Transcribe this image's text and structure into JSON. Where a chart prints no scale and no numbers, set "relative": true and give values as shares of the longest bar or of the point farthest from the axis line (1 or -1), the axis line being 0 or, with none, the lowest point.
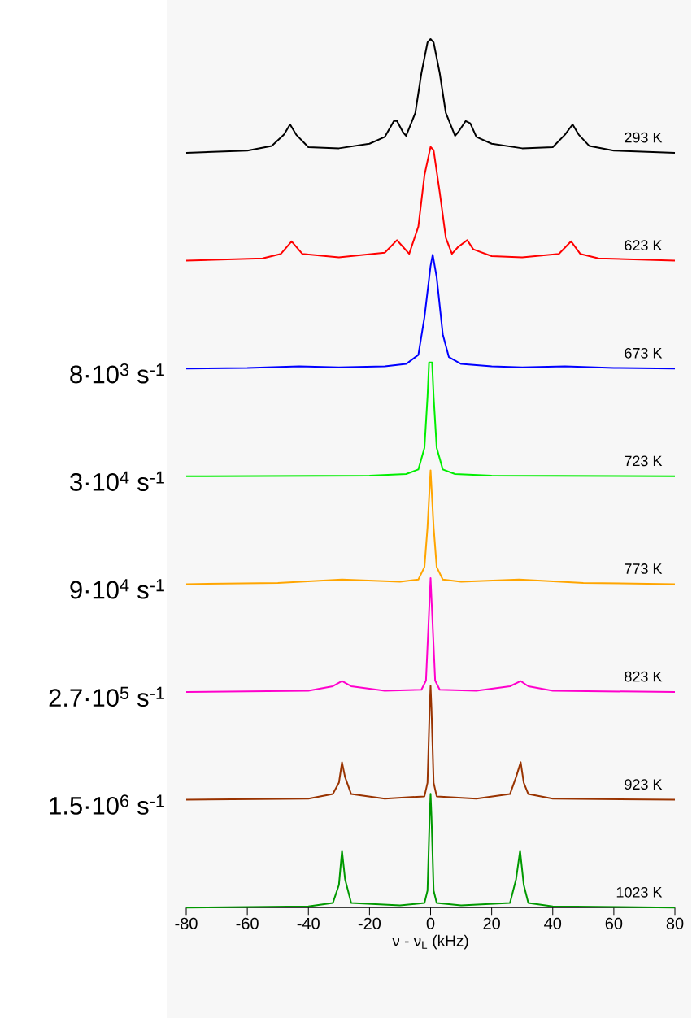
{
  "chart_data": [
    {
      "type": "line",
      "relative": true,
      "tick_labels": false,
      "xlim": [
        -80,
        80
      ],
      "series": [
        {
          "name": "293 K",
          "color": "#000000",
          "x": [
            -80,
            -60,
            -52,
            -48,
            -46,
            -44,
            -40,
            -30,
            -20,
            -15,
            -12,
            -11,
            -9,
            -8,
            -5,
            -3,
            -1,
            0,
            1,
            3,
            5,
            8,
            9,
            11.5,
            13,
            15,
            20,
            30,
            40,
            44,
            46.5,
            48.5,
            52,
            60,
            80
          ],
          "values": [
            0,
            0.02,
            0.06,
            0.16,
            0.25,
            0.16,
            0.05,
            0.04,
            0.08,
            0.14,
            0.28,
            0.28,
            0.18,
            0.15,
            0.35,
            0.7,
            0.97,
            1,
            0.97,
            0.7,
            0.35,
            0.15,
            0.18,
            0.28,
            0.26,
            0.14,
            0.08,
            0.04,
            0.05,
            0.16,
            0.25,
            0.16,
            0.06,
            0.02,
            0
          ]
        }
      ]
    },
    {
      "type": "line",
      "relative": true,
      "tick_labels": false,
      "xlim": [
        -80,
        80
      ],
      "series": [
        {
          "name": "623 K",
          "color": "#ff0000",
          "x": [
            -80,
            -55,
            -49,
            -45.5,
            -42,
            -30,
            -15,
            -11,
            -9,
            -7,
            -4,
            -2,
            0,
            1,
            3,
            5,
            7,
            9,
            12,
            14,
            20,
            30,
            42,
            46,
            49,
            55,
            80
          ],
          "values": [
            0,
            0.02,
            0.06,
            0.17,
            0.06,
            0.03,
            0.07,
            0.18,
            0.12,
            0.06,
            0.3,
            0.75,
            1,
            0.97,
            0.6,
            0.2,
            0.06,
            0.12,
            0.18,
            0.1,
            0.04,
            0.03,
            0.06,
            0.17,
            0.06,
            0.02,
            0
          ]
        }
      ]
    },
    {
      "type": "line",
      "relative": true,
      "tick_labels": false,
      "xlim": [
        -80,
        80
      ],
      "annotations": [
        "8·10$^{3}$ s$^{-1}$"
      ],
      "series": [
        {
          "name": "673 K",
          "color": "#0000ff",
          "x": [
            -80,
            -60,
            -43,
            -30,
            -15,
            -8,
            -4,
            -2,
            0,
            0.7,
            2,
            4,
            6,
            10,
            20,
            30,
            44,
            60,
            80
          ],
          "values": [
            0,
            0.005,
            0.02,
            0.01,
            0.02,
            0.04,
            0.12,
            0.45,
            0.9,
            1,
            0.8,
            0.3,
            0.1,
            0.04,
            0.02,
            0.01,
            0.02,
            0.005,
            0
          ]
        }
      ]
    },
    {
      "type": "line",
      "relative": true,
      "tick_labels": false,
      "xlim": [
        -80,
        80
      ],
      "annotations": [
        "3·10$^{4}$ s$^{-1}$"
      ],
      "series": [
        {
          "name": "723 K",
          "color": "#00ee00",
          "x": [
            -80,
            -20,
            -8,
            -4,
            -2,
            -1,
            -0.5,
            0.5,
            1,
            2,
            4,
            8,
            20,
            80
          ],
          "values": [
            0,
            0.005,
            0.02,
            0.06,
            0.25,
            0.7,
            1,
            1,
            0.7,
            0.25,
            0.06,
            0.02,
            0.005,
            0
          ]
        }
      ]
    },
    {
      "type": "line",
      "relative": true,
      "tick_labels": false,
      "xlim": [
        -80,
        80
      ],
      "annotations": [
        "9·10$^{4}$ s$^{-1}$"
      ],
      "series": [
        {
          "name": "773 K",
          "color": "#ffa500",
          "x": [
            -80,
            -50,
            -29,
            -10,
            -4,
            -2,
            -1,
            0,
            1,
            2,
            4,
            10,
            29,
            50,
            80
          ],
          "values": [
            0,
            0.01,
            0.04,
            0.02,
            0.04,
            0.15,
            0.5,
            1,
            0.5,
            0.15,
            0.04,
            0.02,
            0.04,
            0.01,
            0
          ]
        }
      ]
    },
    {
      "type": "line",
      "relative": true,
      "tick_labels": false,
      "xlim": [
        -80,
        80
      ],
      "annotations": [
        "2.7·10$^{5}$ s$^{-1}$"
      ],
      "series": [
        {
          "name": "823 K",
          "color": "#ff00cc",
          "x": [
            -80,
            -40,
            -32,
            -29,
            -26,
            -15,
            -3,
            -1.5,
            -0.5,
            0,
            0.5,
            1.5,
            3,
            15,
            26,
            29.5,
            32,
            40,
            80
          ],
          "values": [
            0,
            0.01,
            0.05,
            0.095,
            0.05,
            0.01,
            0.02,
            0.1,
            0.7,
            1,
            0.7,
            0.1,
            0.02,
            0.01,
            0.05,
            0.095,
            0.05,
            0.01,
            0
          ]
        }
      ]
    },
    {
      "type": "line",
      "relative": true,
      "tick_labels": false,
      "xlim": [
        -80,
        80
      ],
      "annotations": [
        "1.5·10$^{6}$ s$^{-1}$"
      ],
      "series": [
        {
          "name": "923 K",
          "color": "#993300",
          "x": [
            -80,
            -40,
            -32,
            -30,
            -29,
            -28,
            -26,
            -15,
            -2,
            -1,
            -0.3,
            0,
            0.3,
            1,
            2,
            15,
            26,
            28,
            29.5,
            30.5,
            32,
            40,
            80
          ],
          "values": [
            0,
            0.01,
            0.05,
            0.15,
            0.33,
            0.2,
            0.05,
            0.01,
            0.03,
            0.15,
            0.8,
            1,
            0.8,
            0.15,
            0.03,
            0.01,
            0.05,
            0.2,
            0.33,
            0.15,
            0.05,
            0.01,
            0
          ]
        }
      ]
    },
    {
      "type": "line",
      "relative": true,
      "xlim": [
        -80,
        80
      ],
      "xticks": [
        -80,
        -60,
        -40,
        -20,
        0,
        20,
        40,
        60,
        80
      ],
      "xlabel": "ν - ν$_{L}$  (kHz)",
      "series": [
        {
          "name": "1023 K",
          "color": "#009900",
          "x": [
            -80,
            -40,
            -32,
            -30,
            -29,
            -28,
            -26,
            -10,
            -2,
            -1,
            -0.3,
            0,
            0.3,
            1,
            2,
            10,
            26,
            28,
            29.3,
            30.5,
            32,
            40,
            80
          ],
          "values": [
            0,
            0.01,
            0.04,
            0.2,
            0.5,
            0.25,
            0.04,
            0.02,
            0.04,
            0.15,
            0.8,
            1,
            0.8,
            0.15,
            0.04,
            0.02,
            0.04,
            0.25,
            0.5,
            0.2,
            0.04,
            0.01,
            0
          ]
        }
      ]
    }
  ]
}
